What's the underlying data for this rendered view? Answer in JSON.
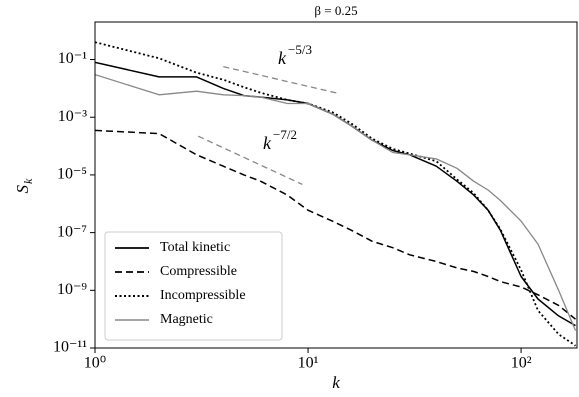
{
  "chart_data": {
    "type": "line",
    "title": "β = 0.25",
    "x_label": "k",
    "y_label": "S",
    "y_label_subscript": "k",
    "x_scale": "log",
    "y_scale": "log",
    "x": [
      1,
      2,
      3,
      4,
      5,
      6,
      8,
      10,
      13,
      16,
      20,
      25,
      30,
      40,
      50,
      60,
      70,
      80,
      100,
      120,
      150,
      180
    ],
    "series": [
      {
        "name": "Total kinetic",
        "color": "#000000",
        "dash": "solid",
        "width": 1.5,
        "values": [
          0.08,
          0.025,
          0.025,
          0.01,
          0.0056,
          0.005,
          0.004,
          0.003,
          0.0013,
          0.0005,
          0.00016,
          7e-05,
          5e-05,
          2e-05,
          6e-06,
          2e-06,
          6e-07,
          1.2e-07,
          3e-09,
          5e-10,
          1.3e-10,
          6e-11
        ]
      },
      {
        "name": "Compressible",
        "color": "#000000",
        "dash": "dashed",
        "width": 1.5,
        "values": [
          0.00035,
          0.00027,
          5e-05,
          2e-05,
          1e-05,
          6e-06,
          2e-06,
          6e-07,
          2.5e-07,
          1.2e-07,
          5e-08,
          3e-08,
          1.7e-08,
          1e-08,
          6e-09,
          4.5e-09,
          3e-09,
          2e-09,
          1.3e-09,
          7e-10,
          3e-10,
          1e-10
        ]
      },
      {
        "name": "Incompressible",
        "color": "#000000",
        "dash": "dotted",
        "width": 1.8,
        "values": [
          0.4,
          0.11,
          0.035,
          0.02,
          0.011,
          0.007,
          0.004,
          0.003,
          0.0015,
          0.0006,
          0.00018,
          8e-05,
          5.5e-05,
          3e-05,
          7e-06,
          2.3e-06,
          6e-07,
          1.3e-07,
          5e-09,
          2e-10,
          3e-11,
          1.2e-11
        ]
      },
      {
        "name": "Magnetic",
        "color": "#888888",
        "dash": "solid",
        "width": 1.3,
        "values": [
          0.03,
          0.006,
          0.008,
          0.006,
          0.0056,
          0.005,
          0.003,
          0.003,
          0.0013,
          0.0005,
          0.00016,
          6e-05,
          5e-05,
          3.6e-05,
          1.7e-05,
          6e-06,
          3e-06,
          1.3e-06,
          2.5e-07,
          4e-08,
          1e-09,
          4e-11
        ]
      }
    ],
    "guide_lines": [
      {
        "x": [
          4,
          14
        ],
        "values": [
          0.057,
          0.0066
        ],
        "color": "#888888"
      },
      {
        "x": [
          3.05,
          9.4
        ],
        "values": [
          0.00022,
          4.7e-06
        ],
        "color": "#888888"
      }
    ],
    "annotations": [
      {
        "text": "k",
        "superscript": "−5/3"
      },
      {
        "text": "k",
        "superscript": "−7/2"
      }
    ],
    "xlim": [
      1,
      183
    ],
    "ylim": [
      1e-11,
      2
    ],
    "xticks": [
      {
        "value": 1,
        "label": "10⁰"
      },
      {
        "value": 10,
        "label": "10¹"
      },
      {
        "value": 100,
        "label": "10²"
      }
    ],
    "yticks": [
      {
        "value": 0.1,
        "label": "10⁻¹"
      },
      {
        "value": 0.001,
        "label": "10⁻³"
      },
      {
        "value": 1e-05,
        "label": "10⁻⁵"
      },
      {
        "value": 1e-07,
        "label": "10⁻⁷"
      },
      {
        "value": 1e-09,
        "label": "10⁻⁹"
      },
      {
        "value": 1e-11,
        "label": "10⁻¹¹"
      }
    ],
    "legend": "lower left",
    "grid": false
  }
}
